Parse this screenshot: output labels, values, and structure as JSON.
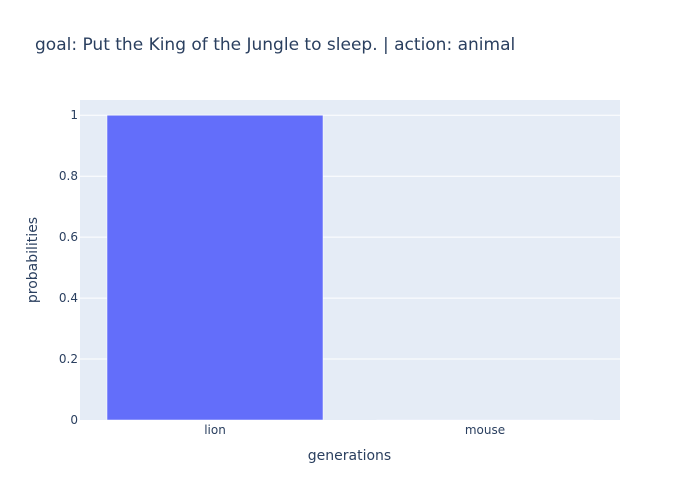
{
  "chart_data": {
    "type": "bar",
    "title": "goal: Put the King of the Jungle to sleep. | action: animal",
    "xlabel": "generations",
    "ylabel": "probabilities",
    "categories": [
      "lion",
      "mouse"
    ],
    "values": [
      1.0,
      0.0003
    ],
    "ylim": [
      0,
      1.05
    ],
    "yticks": [
      0,
      0.2,
      0.4,
      0.6,
      0.8,
      1
    ],
    "ytick_labels": [
      "0",
      "0.2",
      "0.4",
      "0.6",
      "0.8",
      "1"
    ],
    "grid": true,
    "legend": false,
    "colors": {
      "bar": "#636efa",
      "plot_bg": "#e5ecf6",
      "grid": "#ffffff",
      "text": "#2a3f5f",
      "paper_bg": "#ffffff"
    }
  }
}
